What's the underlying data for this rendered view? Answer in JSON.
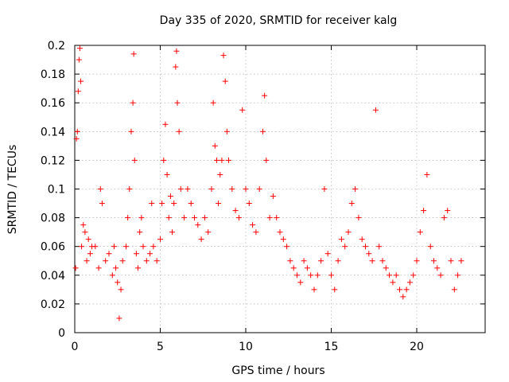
{
  "chart_data": {
    "type": "scatter",
    "title": "Day 335 of 2020, SRMTID for receiver kalg",
    "xlabel": "GPS time / hours",
    "ylabel": "SRMTID / TECUs",
    "xlim": [
      0,
      24
    ],
    "ylim": [
      0,
      0.2
    ],
    "grid": true,
    "marker": "+",
    "x_ticks": [
      0,
      5,
      10,
      15,
      20
    ],
    "x_tick_labels": [
      "0",
      "5",
      "10",
      "15",
      "20"
    ],
    "y_ticks": [
      0,
      0.02,
      0.04,
      0.06,
      0.08,
      0.1,
      0.12,
      0.14,
      0.16,
      0.18,
      0.2
    ],
    "y_tick_labels": [
      "0",
      "0.02",
      "0.04",
      "0.06",
      "0.08",
      "0.1",
      "0.12",
      "0.14",
      "0.16",
      "0.18",
      "0.2"
    ],
    "series": [
      {
        "name": "SRMTID",
        "color": "#ff0000",
        "points": [
          [
            0.05,
            0.045
          ],
          [
            0.1,
            0.135
          ],
          [
            0.15,
            0.14
          ],
          [
            0.2,
            0.168
          ],
          [
            0.25,
            0.19
          ],
          [
            0.3,
            0.198
          ],
          [
            0.35,
            0.175
          ],
          [
            0.4,
            0.06
          ],
          [
            0.5,
            0.075
          ],
          [
            0.6,
            0.07
          ],
          [
            0.7,
            0.05
          ],
          [
            0.8,
            0.065
          ],
          [
            0.9,
            0.055
          ],
          [
            1.0,
            0.06
          ],
          [
            1.2,
            0.06
          ],
          [
            1.4,
            0.045
          ],
          [
            1.5,
            0.1
          ],
          [
            1.6,
            0.09
          ],
          [
            1.8,
            0.05
          ],
          [
            2.0,
            0.055
          ],
          [
            2.2,
            0.04
          ],
          [
            2.3,
            0.06
          ],
          [
            2.4,
            0.045
          ],
          [
            2.5,
            0.035
          ],
          [
            2.6,
            0.01
          ],
          [
            2.7,
            0.03
          ],
          [
            2.8,
            0.05
          ],
          [
            3.0,
            0.06
          ],
          [
            3.1,
            0.08
          ],
          [
            3.2,
            0.1
          ],
          [
            3.3,
            0.14
          ],
          [
            3.4,
            0.16
          ],
          [
            3.45,
            0.194
          ],
          [
            3.5,
            0.12
          ],
          [
            3.6,
            0.055
          ],
          [
            3.7,
            0.045
          ],
          [
            3.8,
            0.07
          ],
          [
            3.9,
            0.08
          ],
          [
            4.0,
            0.06
          ],
          [
            4.2,
            0.05
          ],
          [
            4.4,
            0.055
          ],
          [
            4.5,
            0.09
          ],
          [
            4.6,
            0.06
          ],
          [
            4.8,
            0.05
          ],
          [
            5.0,
            0.065
          ],
          [
            5.1,
            0.09
          ],
          [
            5.2,
            0.12
          ],
          [
            5.3,
            0.145
          ],
          [
            5.4,
            0.11
          ],
          [
            5.5,
            0.08
          ],
          [
            5.6,
            0.095
          ],
          [
            5.7,
            0.07
          ],
          [
            5.8,
            0.09
          ],
          [
            5.9,
            0.185
          ],
          [
            5.95,
            0.196
          ],
          [
            6.0,
            0.16
          ],
          [
            6.1,
            0.14
          ],
          [
            6.2,
            0.1
          ],
          [
            6.4,
            0.08
          ],
          [
            6.6,
            0.1
          ],
          [
            6.8,
            0.09
          ],
          [
            7.0,
            0.08
          ],
          [
            7.2,
            0.075
          ],
          [
            7.4,
            0.065
          ],
          [
            7.6,
            0.08
          ],
          [
            7.8,
            0.07
          ],
          [
            8.0,
            0.1
          ],
          [
            8.1,
            0.16
          ],
          [
            8.2,
            0.13
          ],
          [
            8.3,
            0.12
          ],
          [
            8.4,
            0.09
          ],
          [
            8.5,
            0.11
          ],
          [
            8.6,
            0.12
          ],
          [
            8.7,
            0.193
          ],
          [
            8.8,
            0.175
          ],
          [
            8.9,
            0.14
          ],
          [
            9.0,
            0.12
          ],
          [
            9.2,
            0.1
          ],
          [
            9.4,
            0.085
          ],
          [
            9.6,
            0.08
          ],
          [
            9.8,
            0.155
          ],
          [
            10.0,
            0.1
          ],
          [
            10.2,
            0.09
          ],
          [
            10.4,
            0.075
          ],
          [
            10.6,
            0.07
          ],
          [
            10.8,
            0.1
          ],
          [
            11.0,
            0.14
          ],
          [
            11.1,
            0.165
          ],
          [
            11.2,
            0.12
          ],
          [
            11.4,
            0.08
          ],
          [
            11.6,
            0.095
          ],
          [
            11.8,
            0.08
          ],
          [
            12.0,
            0.07
          ],
          [
            12.2,
            0.065
          ],
          [
            12.4,
            0.06
          ],
          [
            12.6,
            0.05
          ],
          [
            12.8,
            0.045
          ],
          [
            13.0,
            0.04
          ],
          [
            13.2,
            0.035
          ],
          [
            13.4,
            0.05
          ],
          [
            13.6,
            0.045
          ],
          [
            13.8,
            0.04
          ],
          [
            14.0,
            0.03
          ],
          [
            14.2,
            0.04
          ],
          [
            14.4,
            0.05
          ],
          [
            14.6,
            0.1
          ],
          [
            14.8,
            0.055
          ],
          [
            15.0,
            0.04
          ],
          [
            15.2,
            0.03
          ],
          [
            15.4,
            0.05
          ],
          [
            15.6,
            0.065
          ],
          [
            15.8,
            0.06
          ],
          [
            16.0,
            0.07
          ],
          [
            16.2,
            0.09
          ],
          [
            16.4,
            0.1
          ],
          [
            16.6,
            0.08
          ],
          [
            16.8,
            0.065
          ],
          [
            17.0,
            0.06
          ],
          [
            17.2,
            0.055
          ],
          [
            17.4,
            0.05
          ],
          [
            17.6,
            0.155
          ],
          [
            17.8,
            0.06
          ],
          [
            18.0,
            0.05
          ],
          [
            18.2,
            0.045
          ],
          [
            18.4,
            0.04
          ],
          [
            18.6,
            0.035
          ],
          [
            18.8,
            0.04
          ],
          [
            19.0,
            0.03
          ],
          [
            19.2,
            0.025
          ],
          [
            19.4,
            0.03
          ],
          [
            19.6,
            0.035
          ],
          [
            19.8,
            0.04
          ],
          [
            20.0,
            0.05
          ],
          [
            20.2,
            0.07
          ],
          [
            20.4,
            0.085
          ],
          [
            20.6,
            0.11
          ],
          [
            20.8,
            0.06
          ],
          [
            21.0,
            0.05
          ],
          [
            21.2,
            0.045
          ],
          [
            21.4,
            0.04
          ],
          [
            21.6,
            0.08
          ],
          [
            21.8,
            0.085
          ],
          [
            22.0,
            0.05
          ],
          [
            22.2,
            0.03
          ],
          [
            22.4,
            0.04
          ],
          [
            22.6,
            0.05
          ]
        ]
      }
    ]
  }
}
